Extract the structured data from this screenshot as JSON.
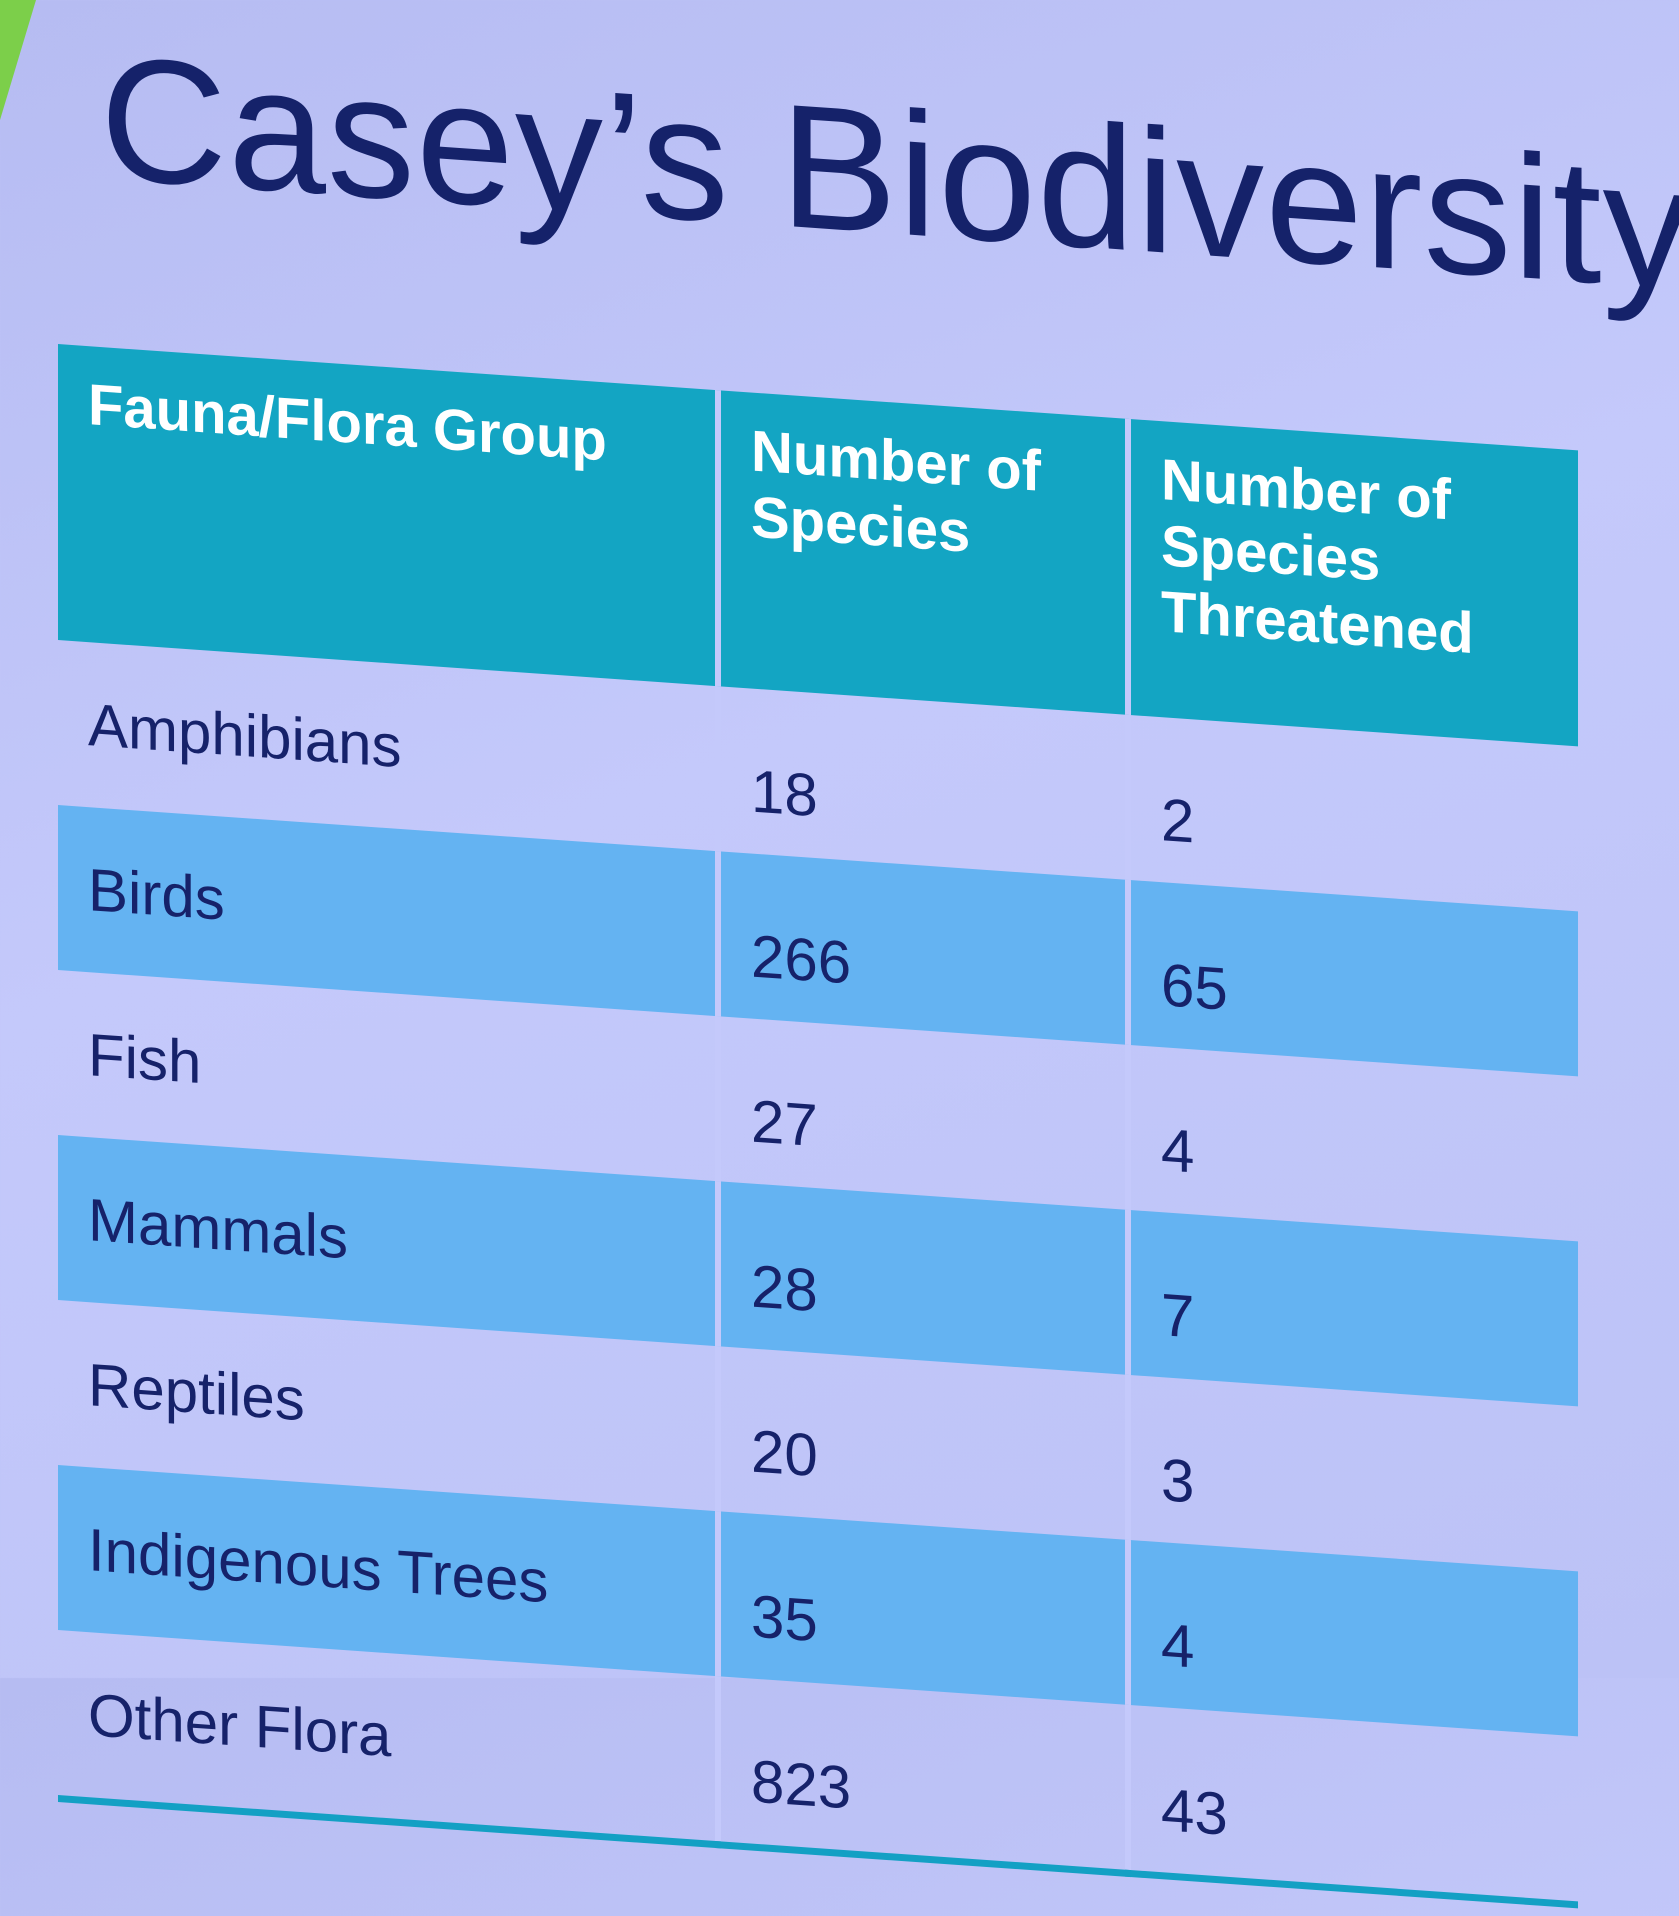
{
  "title": "Casey’s Biodiversity",
  "table": {
    "header": [
      "Fauna/Flora Group",
      "Number of Species",
      "Number of Species Threatened"
    ],
    "rows": [
      [
        "Amphibians",
        18,
        2
      ],
      [
        "Birds",
        266,
        65
      ],
      [
        "Fish",
        27,
        4
      ],
      [
        "Mammals",
        28,
        7
      ],
      [
        "Reptiles",
        20,
        3
      ],
      [
        "Indigenous Trees",
        35,
        4
      ],
      [
        "Other Flora",
        823,
        43
      ]
    ]
  }
}
